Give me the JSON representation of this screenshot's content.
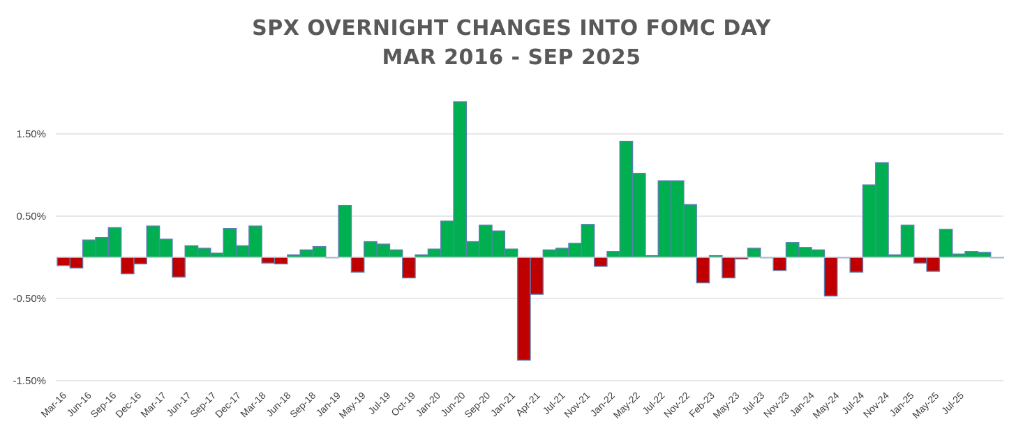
{
  "chart_data": {
    "type": "bar",
    "title": "SPX OVERNIGHT CHANGES INTO FOMC DAY",
    "subtitle": "MAR 2016 - SEP 2025",
    "xlabel": "",
    "ylabel": "",
    "ylim": [
      -1.5,
      2.0
    ],
    "yticks": [
      1.5,
      0.5,
      -0.5,
      -1.5
    ],
    "ytick_labels": [
      "1.50%",
      "0.50%",
      "-0.50%",
      "-1.50%"
    ],
    "grid": true,
    "legend": "none",
    "colors": {
      "positive": "#00b050",
      "negative": "#c00000",
      "outline": "#5b7fb3",
      "grid": "#d9d9d9"
    },
    "x_tick_labels": [
      "Mar-16",
      "Jun-16",
      "Sep-16",
      "Dec-16",
      "Mar-17",
      "Jun-17",
      "Sep-17",
      "Dec-17",
      "Mar-18",
      "Jun-18",
      "Sep-18",
      "Jan-19",
      "May-19",
      "Jul-19",
      "Oct-19",
      "Jan-20",
      "Jun-20",
      "Sep-20",
      "Jan-21",
      "Apr-21",
      "Jul-21",
      "Nov-21",
      "Jan-22",
      "May-22",
      "Jul-22",
      "Nov-22",
      "Feb-23",
      "May-23",
      "Jul-23",
      "Nov-23",
      "Jan-24",
      "May-24",
      "Jul-24",
      "Nov-24",
      "Jan-25",
      "May-25",
      "Jul-25"
    ],
    "values": [
      -0.1,
      -0.13,
      0.21,
      0.24,
      0.36,
      -0.2,
      -0.08,
      0.38,
      0.22,
      -0.24,
      0.14,
      0.11,
      0.05,
      0.35,
      0.14,
      0.38,
      -0.07,
      -0.08,
      0.03,
      0.09,
      0.13,
      0.0,
      0.63,
      -0.18,
      0.19,
      0.16,
      0.09,
      -0.25,
      0.03,
      0.1,
      0.44,
      1.89,
      0.19,
      0.39,
      0.32,
      0.1,
      -1.25,
      -0.45,
      0.09,
      0.11,
      0.17,
      0.4,
      -0.11,
      0.07,
      1.41,
      1.02,
      0.02,
      0.93,
      0.93,
      0.64,
      -0.31,
      0.02,
      -0.25,
      -0.02,
      0.11,
      0.0,
      -0.16,
      0.18,
      0.12,
      0.09,
      -0.47,
      0.0,
      -0.18,
      0.88,
      1.15,
      0.03,
      0.39,
      -0.07,
      -0.17,
      0.34,
      0.04,
      0.07,
      0.06,
      0.0
    ]
  }
}
